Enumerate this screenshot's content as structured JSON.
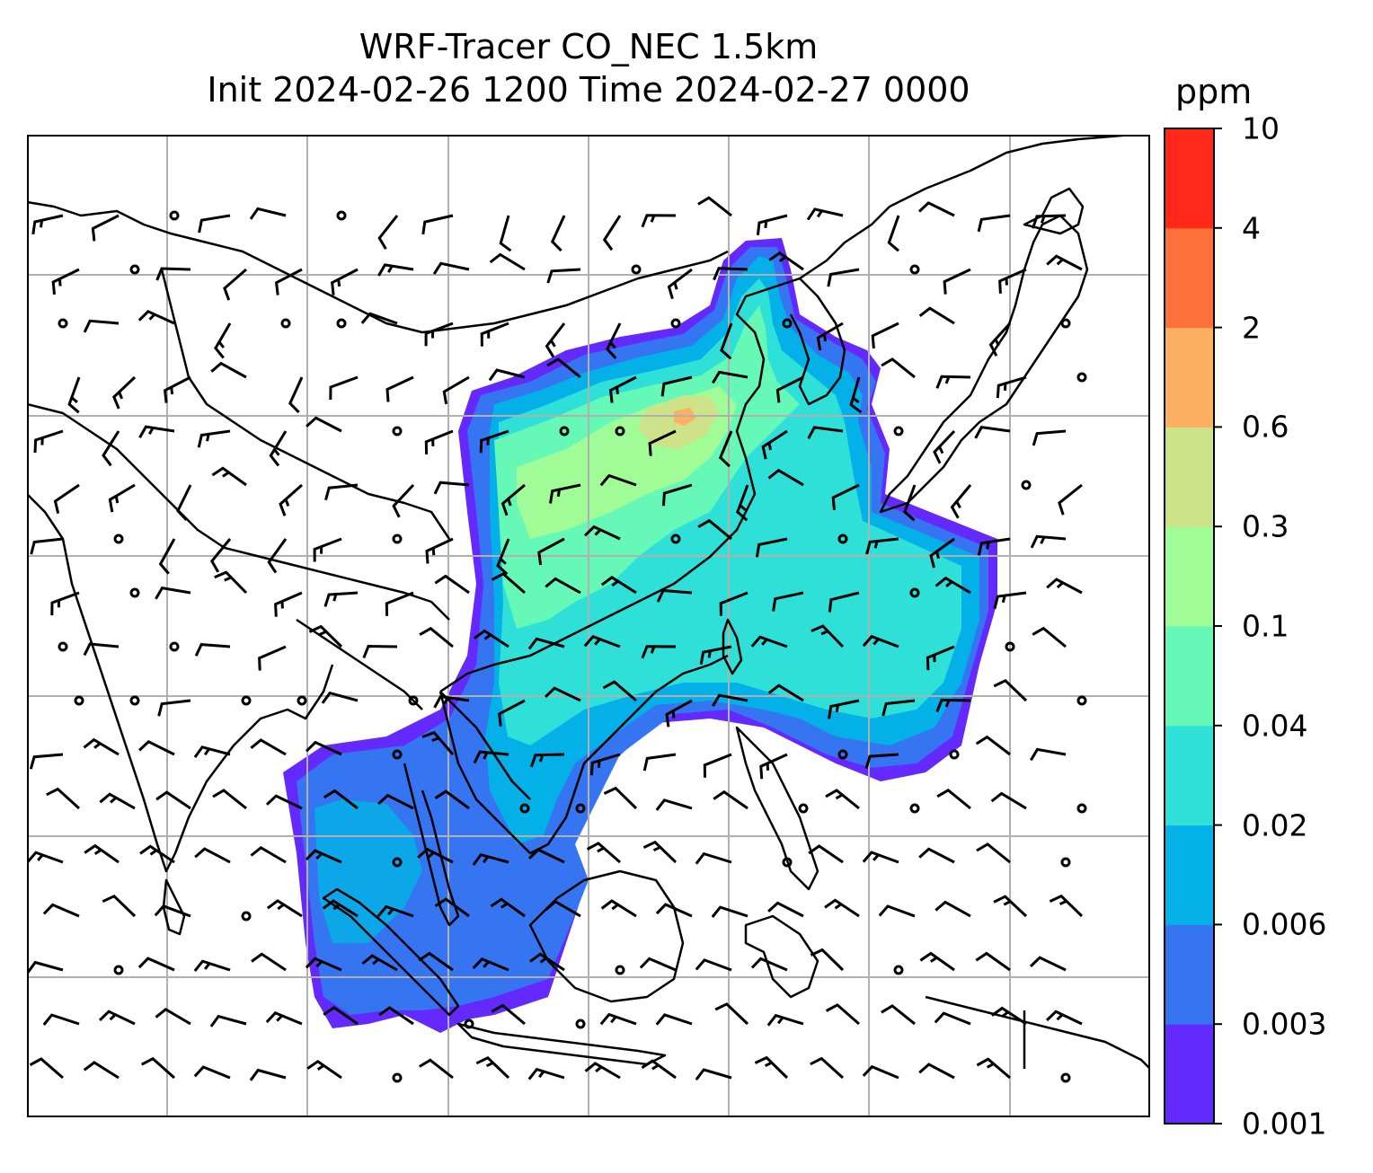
{
  "title": {
    "line1": "WRF-Tracer CO_NEC 1.5km",
    "line2": "Init 2024-02-26 1200 Time 2024-02-27 0000"
  },
  "colorbar": {
    "unit": "ppm",
    "levels": [
      "0.001",
      "0.003",
      "0.006",
      "0.02",
      "0.04",
      "0.1",
      "0.3",
      "0.6",
      "2",
      "4",
      "10"
    ],
    "colors": [
      "#6429fc",
      "#3575f2",
      "#03b0e7",
      "#2ee0d7",
      "#66f8b7",
      "#a0fc96",
      "#cde289",
      "#fdb061",
      "#ff713c",
      "#ff2819"
    ]
  },
  "map": {
    "type": "filled-contour with wind barbs",
    "gridlines": true,
    "coastlines": true
  }
}
